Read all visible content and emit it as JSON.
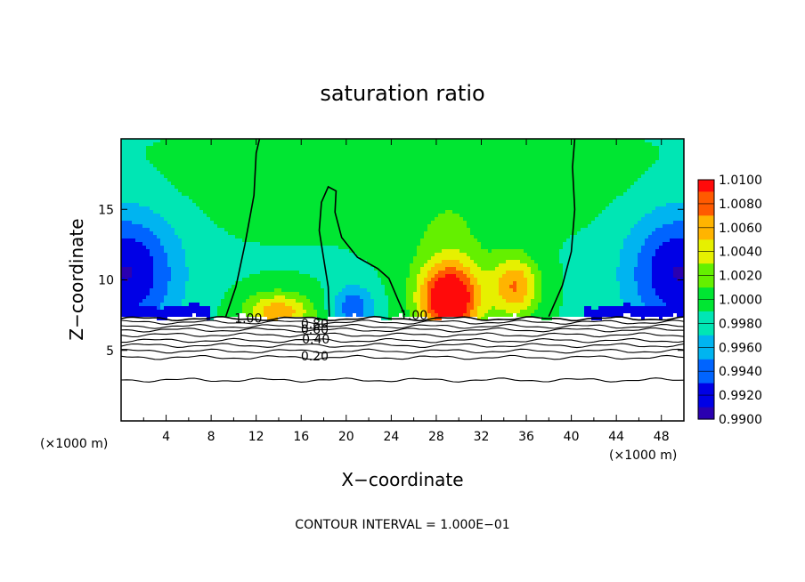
{
  "chart_data": {
    "type": "heatmap",
    "title": "saturation ratio",
    "xlabel": "X−coordinate",
    "ylabel": "Z−coordinate",
    "x_unit_left": "(×1000 m)",
    "x_unit_right": "(×1000 m)",
    "xlim": [
      0,
      50
    ],
    "ylim": [
      0,
      20
    ],
    "x_ticks": [
      4,
      8,
      12,
      16,
      20,
      24,
      28,
      32,
      36,
      40,
      44,
      48
    ],
    "x_tick_labels": [
      "4",
      "8",
      "12",
      "16",
      "20",
      "24",
      "28",
      "32",
      "36",
      "40",
      "44",
      "48"
    ],
    "y_ticks": [
      5,
      10,
      15
    ],
    "y_tick_labels": [
      "5",
      "10",
      "15"
    ],
    "footer": "CONTOUR INTERVAL = 1.000E−01",
    "colorbar": {
      "levels": [
        0.99,
        0.992,
        0.994,
        0.996,
        0.998,
        1.0,
        1.002,
        1.004,
        1.006,
        1.008,
        1.01
      ],
      "labels": [
        "0.9900",
        "0.9920",
        "0.9940",
        "0.9960",
        "0.9980",
        "1.0000",
        "1.0020",
        "1.0040",
        "1.0060",
        "1.0080",
        "1.0100"
      ],
      "colors": [
        "#5a0f8c",
        "#2a00b0",
        "#0000e6",
        "#0064ff",
        "#00b4f0",
        "#00e6b4",
        "#00e632",
        "#64f000",
        "#e6f000",
        "#ffb400",
        "#ff5a00",
        "#ff0a0a",
        "#ff8c8c",
        "#ffffff"
      ]
    },
    "contour_labels": [
      {
        "text": "1.00",
        "x": 11.3,
        "z": 7.3
      },
      {
        "text": "0.80",
        "x": 17.2,
        "z": 6.9
      },
      {
        "text": "0.60",
        "x": 17.2,
        "z": 6.5
      },
      {
        "text": "0.40",
        "x": 17.3,
        "z": 5.8
      },
      {
        "text": "0.20",
        "x": 17.2,
        "z": 4.6
      },
      {
        "text": "1.00",
        "x": 26.0,
        "z": 7.5
      }
    ],
    "contour_levels_lower": [
      {
        "level": 1.0,
        "z": 7.25
      },
      {
        "level": 0.9,
        "z": 7.0
      },
      {
        "level": 0.8,
        "z": 6.7
      },
      {
        "level": 0.7,
        "z": 6.45
      },
      {
        "level": 0.6,
        "z": 6.1
      },
      {
        "level": 0.5,
        "z": 5.7
      },
      {
        "level": 0.4,
        "z": 5.35
      },
      {
        "level": 0.3,
        "z": 4.95
      },
      {
        "level": 0.2,
        "z": 4.5
      },
      {
        "level": 0.1,
        "z": 2.9
      }
    ]
  }
}
